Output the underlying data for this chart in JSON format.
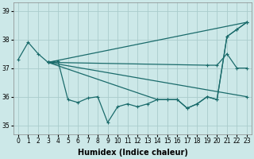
{
  "xlabel": "Humidex (Indice chaleur)",
  "bg_color": "#cce8e8",
  "grid_color": "#aacccc",
  "line_color": "#1a6b6b",
  "xlim": [
    -0.5,
    23.5
  ],
  "ylim": [
    34.7,
    39.3
  ],
  "yticks": [
    35,
    36,
    37,
    38,
    39
  ],
  "xtick_labels": [
    "0",
    "1",
    "2",
    "3",
    "4",
    "5",
    "6",
    "7",
    "8",
    "9",
    "10",
    "11",
    "12",
    "13",
    "14",
    "15",
    "16",
    "17",
    "18",
    "19",
    "20",
    "21",
    "22",
    "23"
  ],
  "label_fontsize": 7,
  "tick_fontsize": 5.5,
  "lines": {
    "zigzag": {
      "x": [
        0,
        1,
        2,
        3,
        4,
        5,
        6,
        7,
        8,
        9,
        10,
        11,
        12,
        13,
        14,
        15,
        16,
        17,
        18,
        19,
        20,
        21,
        22,
        23
      ],
      "y": [
        37.3,
        37.9,
        37.5,
        37.2,
        37.25,
        35.9,
        35.8,
        35.95,
        36.0,
        35.1,
        35.65,
        35.75,
        35.65,
        35.75,
        35.9,
        35.9,
        35.9,
        35.6,
        35.75,
        36.0,
        35.9,
        38.1,
        38.35,
        38.6
      ]
    },
    "fan_top": {
      "x": [
        3,
        23
      ],
      "y": [
        37.2,
        38.6
      ]
    },
    "fan_mid1": {
      "x": [
        3,
        19,
        20,
        21,
        22,
        23
      ],
      "y": [
        37.2,
        37.1,
        37.1,
        37.5,
        37.0,
        37.0
      ]
    },
    "fan_mid2": {
      "x": [
        3,
        23
      ],
      "y": [
        37.2,
        36.0
      ]
    },
    "fan_bot": {
      "x": [
        3,
        14,
        15,
        16,
        17,
        18,
        19,
        20,
        21,
        22,
        23
      ],
      "y": [
        37.2,
        35.9,
        35.9,
        35.9,
        35.6,
        35.75,
        36.0,
        35.9,
        38.1,
        38.35,
        38.6
      ]
    }
  }
}
